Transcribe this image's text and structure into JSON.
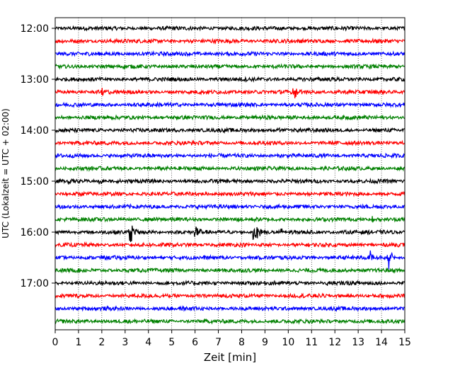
{
  "chart_data": {
    "type": "line",
    "xlabel": "Zeit  [min]",
    "ylabel": "UTC (Lokalzeit = UTC + 02:00)",
    "xlim": [
      0,
      15
    ],
    "x_ticks": [
      0,
      1,
      2,
      3,
      4,
      5,
      6,
      7,
      8,
      9,
      10,
      11,
      12,
      13,
      14,
      15
    ],
    "x_tick_labels": [
      "0",
      "1",
      "2",
      "3",
      "4",
      "5",
      "6",
      "7",
      "8",
      "9",
      "10",
      "11",
      "12",
      "13",
      "14",
      "15"
    ],
    "y_tick_labels": [
      "12:00",
      "13:00",
      "14:00",
      "15:00",
      "16:00",
      "17:00"
    ],
    "trace_start_times": [
      "12:00",
      "12:15",
      "12:30",
      "12:45",
      "13:00",
      "13:15",
      "13:30",
      "13:45",
      "14:00",
      "14:15",
      "14:30",
      "14:45",
      "15:00",
      "15:15",
      "15:30",
      "15:45",
      "16:00",
      "16:15",
      "16:30",
      "16:45",
      "17:00",
      "17:15",
      "17:30",
      "17:45"
    ],
    "trace_minutes_per_line": 15,
    "grid": "vertical-dotted",
    "colors": [
      "#000000",
      "#ff0000",
      "#0000ff",
      "#008000"
    ],
    "events": [
      {
        "trace": "13:15",
        "minute": 2.0,
        "amplitude": 0.35
      },
      {
        "trace": "13:15",
        "minute": 10.2,
        "amplitude": 0.7
      },
      {
        "trace": "14:00",
        "minute": 9.5,
        "amplitude": 0.2
      },
      {
        "trace": "15:00",
        "minute": 0.5,
        "amplitude": 0.15
      },
      {
        "trace": "15:00",
        "minute": 1.9,
        "amplitude": 0.3
      },
      {
        "trace": "15:45",
        "minute": 13.6,
        "amplitude": 0.2
      },
      {
        "trace": "16:00",
        "minute": 3.2,
        "amplitude": 0.9
      },
      {
        "trace": "16:00",
        "minute": 6.0,
        "amplitude": 0.6
      },
      {
        "trace": "16:00",
        "minute": 8.5,
        "amplitude": 1.1
      },
      {
        "trace": "16:00",
        "minute": 8.8,
        "amplitude": 0.3
      },
      {
        "trace": "16:00",
        "minute": 9.7,
        "amplitude": 0.2
      },
      {
        "trace": "16:30",
        "minute": 13.5,
        "amplitude": 0.6
      },
      {
        "trace": "16:30",
        "minute": 14.3,
        "amplitude": 0.9
      },
      {
        "trace": "17:00",
        "minute": 11.6,
        "amplitude": 0.2
      },
      {
        "trace": "17:30",
        "minute": 5.9,
        "amplitude": 0.2
      }
    ]
  }
}
